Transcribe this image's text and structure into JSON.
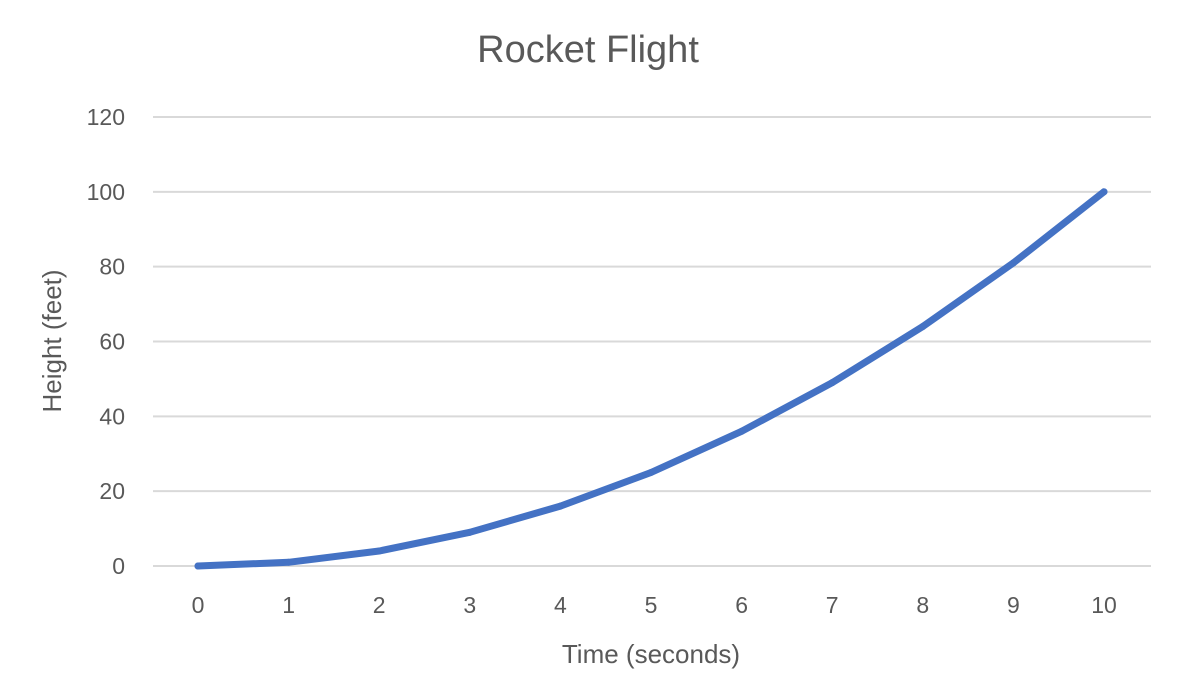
{
  "chart_data": {
    "type": "line",
    "title": "Rocket Flight",
    "xlabel": "Time (seconds)",
    "ylabel": "Height (feet)",
    "categories": [
      "0",
      "1",
      "2",
      "3",
      "4",
      "5",
      "6",
      "7",
      "8",
      "9",
      "10"
    ],
    "x": [
      0,
      1,
      2,
      3,
      4,
      5,
      6,
      7,
      8,
      9,
      10
    ],
    "series": [
      {
        "values": [
          0,
          1,
          4,
          9,
          16,
          25,
          36,
          49,
          64,
          81,
          100
        ]
      }
    ],
    "ylim": [
      0,
      120
    ],
    "yticks": [
      0,
      20,
      40,
      60,
      80,
      100,
      120
    ],
    "grid": true,
    "legend": "none"
  },
  "colors": {
    "series_line": "#4472c4",
    "text": "#595959",
    "grid": "#d9d9d9"
  }
}
